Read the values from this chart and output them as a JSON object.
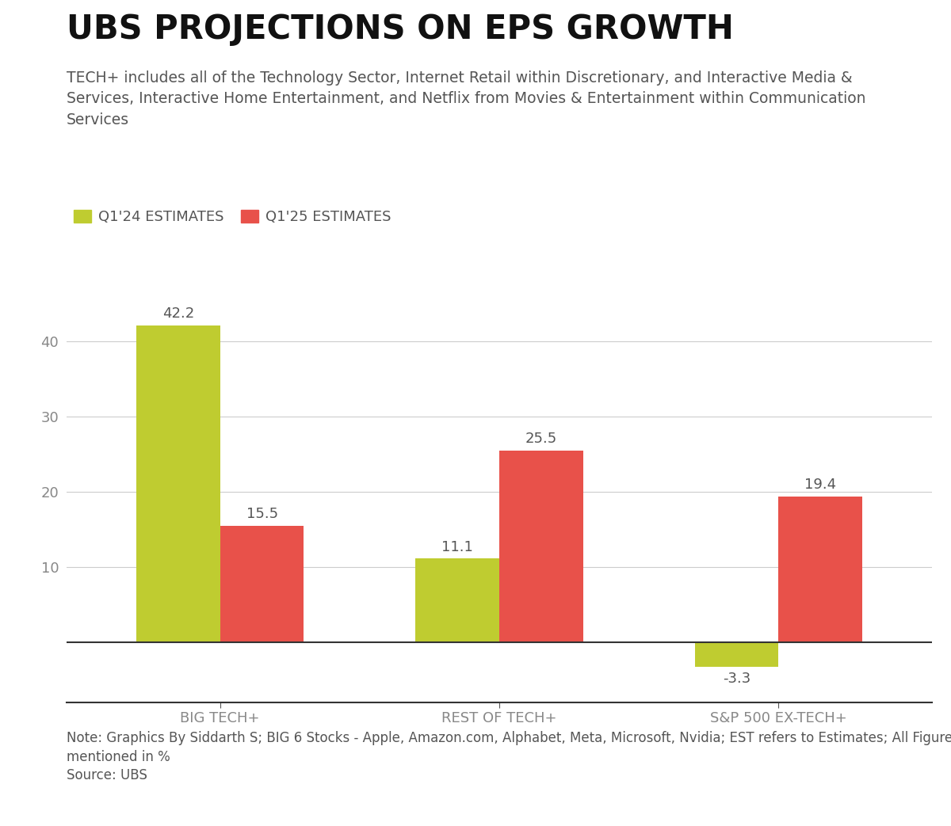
{
  "title": "UBS PROJECTIONS ON EPS GROWTH",
  "subtitle_line1": "TECH+ includes all of the Technology Sector, Internet Retail within Discretionary, and Interactive Media &",
  "subtitle_line2": "Services, Interactive Home Entertainment, and Netflix from Movies & Entertainment within Communication",
  "subtitle_line3": "Services",
  "categories": [
    "BIG TECH+",
    "REST OF TECH+",
    "S&P 500 EX-TECH+"
  ],
  "q124_values": [
    42.2,
    11.1,
    -3.3
  ],
  "q125_values": [
    15.5,
    25.5,
    19.4
  ],
  "q124_color": "#bfcc30",
  "q125_color": "#e8514a",
  "q124_label": "Q1'24 ESTIMATES",
  "q125_label": "Q1'25 ESTIMATES",
  "ylim_min": -8,
  "ylim_max": 47,
  "yticks": [
    10,
    20,
    30,
    40
  ],
  "note_line1": "Note: Graphics By Siddarth S; BIG 6 Stocks - Apple, Amazon.com, Alphabet, Meta, Microsoft, Nvidia; EST refers to Estimates; All Figures",
  "note_line2": "mentioned in %",
  "source": "Source: UBS",
  "background_color": "#ffffff",
  "title_fontsize": 30,
  "subtitle_fontsize": 13.5,
  "label_fontsize": 13,
  "tick_fontsize": 13,
  "note_fontsize": 12,
  "bar_width": 0.3,
  "grid_color": "#cccccc",
  "axis_color": "#555555",
  "text_color_dark": "#111111",
  "text_color_mid": "#555555",
  "text_color_light": "#888888"
}
